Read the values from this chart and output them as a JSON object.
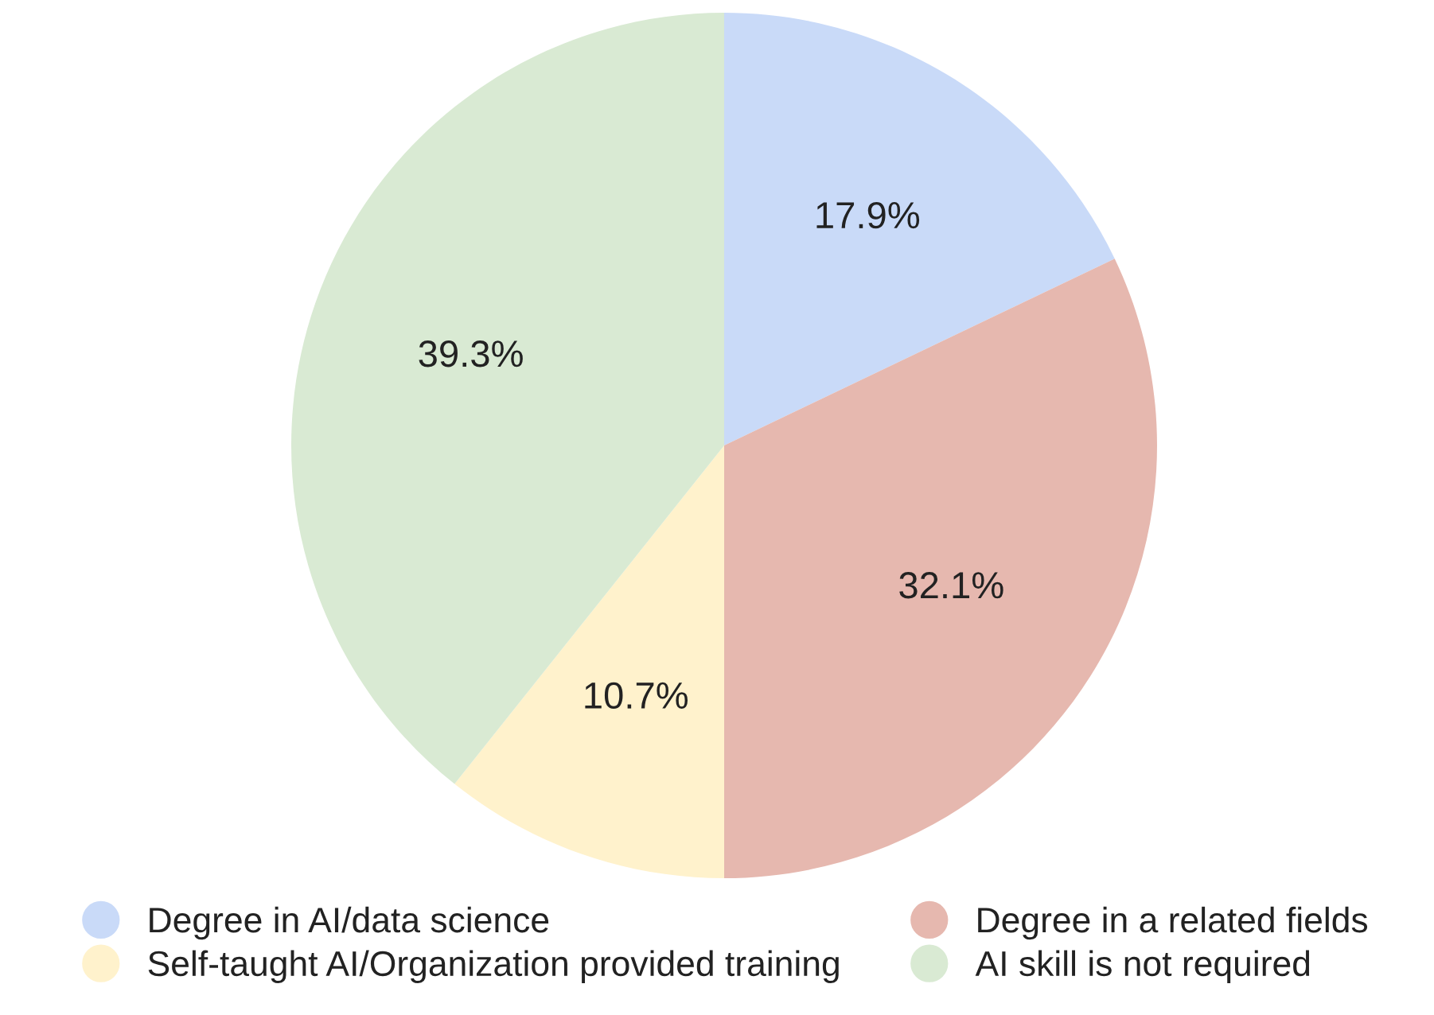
{
  "chart_data": {
    "type": "pie",
    "categories": [
      "Degree in AI/data science",
      "Degree in a related fields",
      "Self-taught AI/Organization provided training",
      "AI skill is not required"
    ],
    "values": [
      17.9,
      32.1,
      10.7,
      39.3
    ],
    "colors": [
      "#c9daf8",
      "#e6b8af",
      "#fff2cc",
      "#d9ead3"
    ],
    "value_labels": [
      "17.9%",
      "32.1%",
      "10.7%",
      "39.3%"
    ],
    "legend": "bottom"
  }
}
